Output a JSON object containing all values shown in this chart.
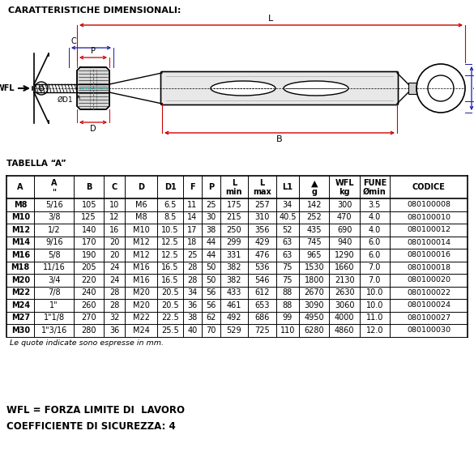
{
  "title": "CARATTERISTICHE DIMENSIONALI:",
  "table_title": "TABELLA “A”",
  "rows": [
    [
      "M8",
      "5/16",
      105,
      10,
      "M6",
      6.5,
      11,
      25,
      175,
      257,
      34,
      142,
      300,
      3.5,
      "080100008"
    ],
    [
      "M10",
      "3/8",
      125,
      12,
      "M8",
      8.5,
      14,
      30,
      215,
      310,
      40.5,
      252,
      470,
      4.0,
      "080100010"
    ],
    [
      "M12",
      "1/2",
      140,
      16,
      "M10",
      10.5,
      17,
      38,
      250,
      356,
      52,
      435,
      690,
      4.0,
      "080100012"
    ],
    [
      "M14",
      "9/16",
      170,
      20,
      "M12",
      12.5,
      18,
      44,
      299,
      429,
      63,
      745,
      940,
      6.0,
      "080100014"
    ],
    [
      "M16",
      "5/8",
      190,
      20,
      "M12",
      12.5,
      25,
      44,
      331,
      476,
      63,
      965,
      1290,
      6.0,
      "080100016"
    ],
    [
      "M18",
      "11/16",
      205,
      24,
      "M16",
      16.5,
      28,
      50,
      382,
      536,
      75,
      1530,
      1660,
      7.0,
      "080100018"
    ],
    [
      "M20",
      "3/4",
      220,
      24,
      "M16",
      16.5,
      28,
      50,
      382,
      546,
      75,
      1800,
      2130,
      7.0,
      "080100020"
    ],
    [
      "M22",
      "7/8",
      240,
      28,
      "M20",
      20.5,
      34,
      56,
      433,
      612,
      88,
      2670,
      2630,
      10.0,
      "080100022"
    ],
    [
      "M24",
      "1\"",
      260,
      28,
      "M20",
      20.5,
      36,
      56,
      461,
      653,
      88,
      3090,
      3060,
      10.0,
      "080100024"
    ],
    [
      "M27",
      "1\"1/8",
      270,
      32,
      "M22",
      22.5,
      38,
      62,
      492,
      686,
      99,
      4950,
      4000,
      11.0,
      "080100027"
    ],
    [
      "M30",
      "1\"3/16",
      280,
      36,
      "M24",
      25.5,
      40,
      70,
      529,
      725,
      110,
      6280,
      4860,
      12.0,
      "080100030"
    ]
  ],
  "note": "Le quote indicate sono espresse in mm.",
  "footer1": "WFL = FORZA LIMITE DI  LAVORO",
  "footer2": "COEFFICIENTE DI SICUREZZA: 4",
  "bg_color": "#ffffff",
  "black": "#000000",
  "red": "#cc0000",
  "blue": "#1a1aaa",
  "cyan": "#009999"
}
